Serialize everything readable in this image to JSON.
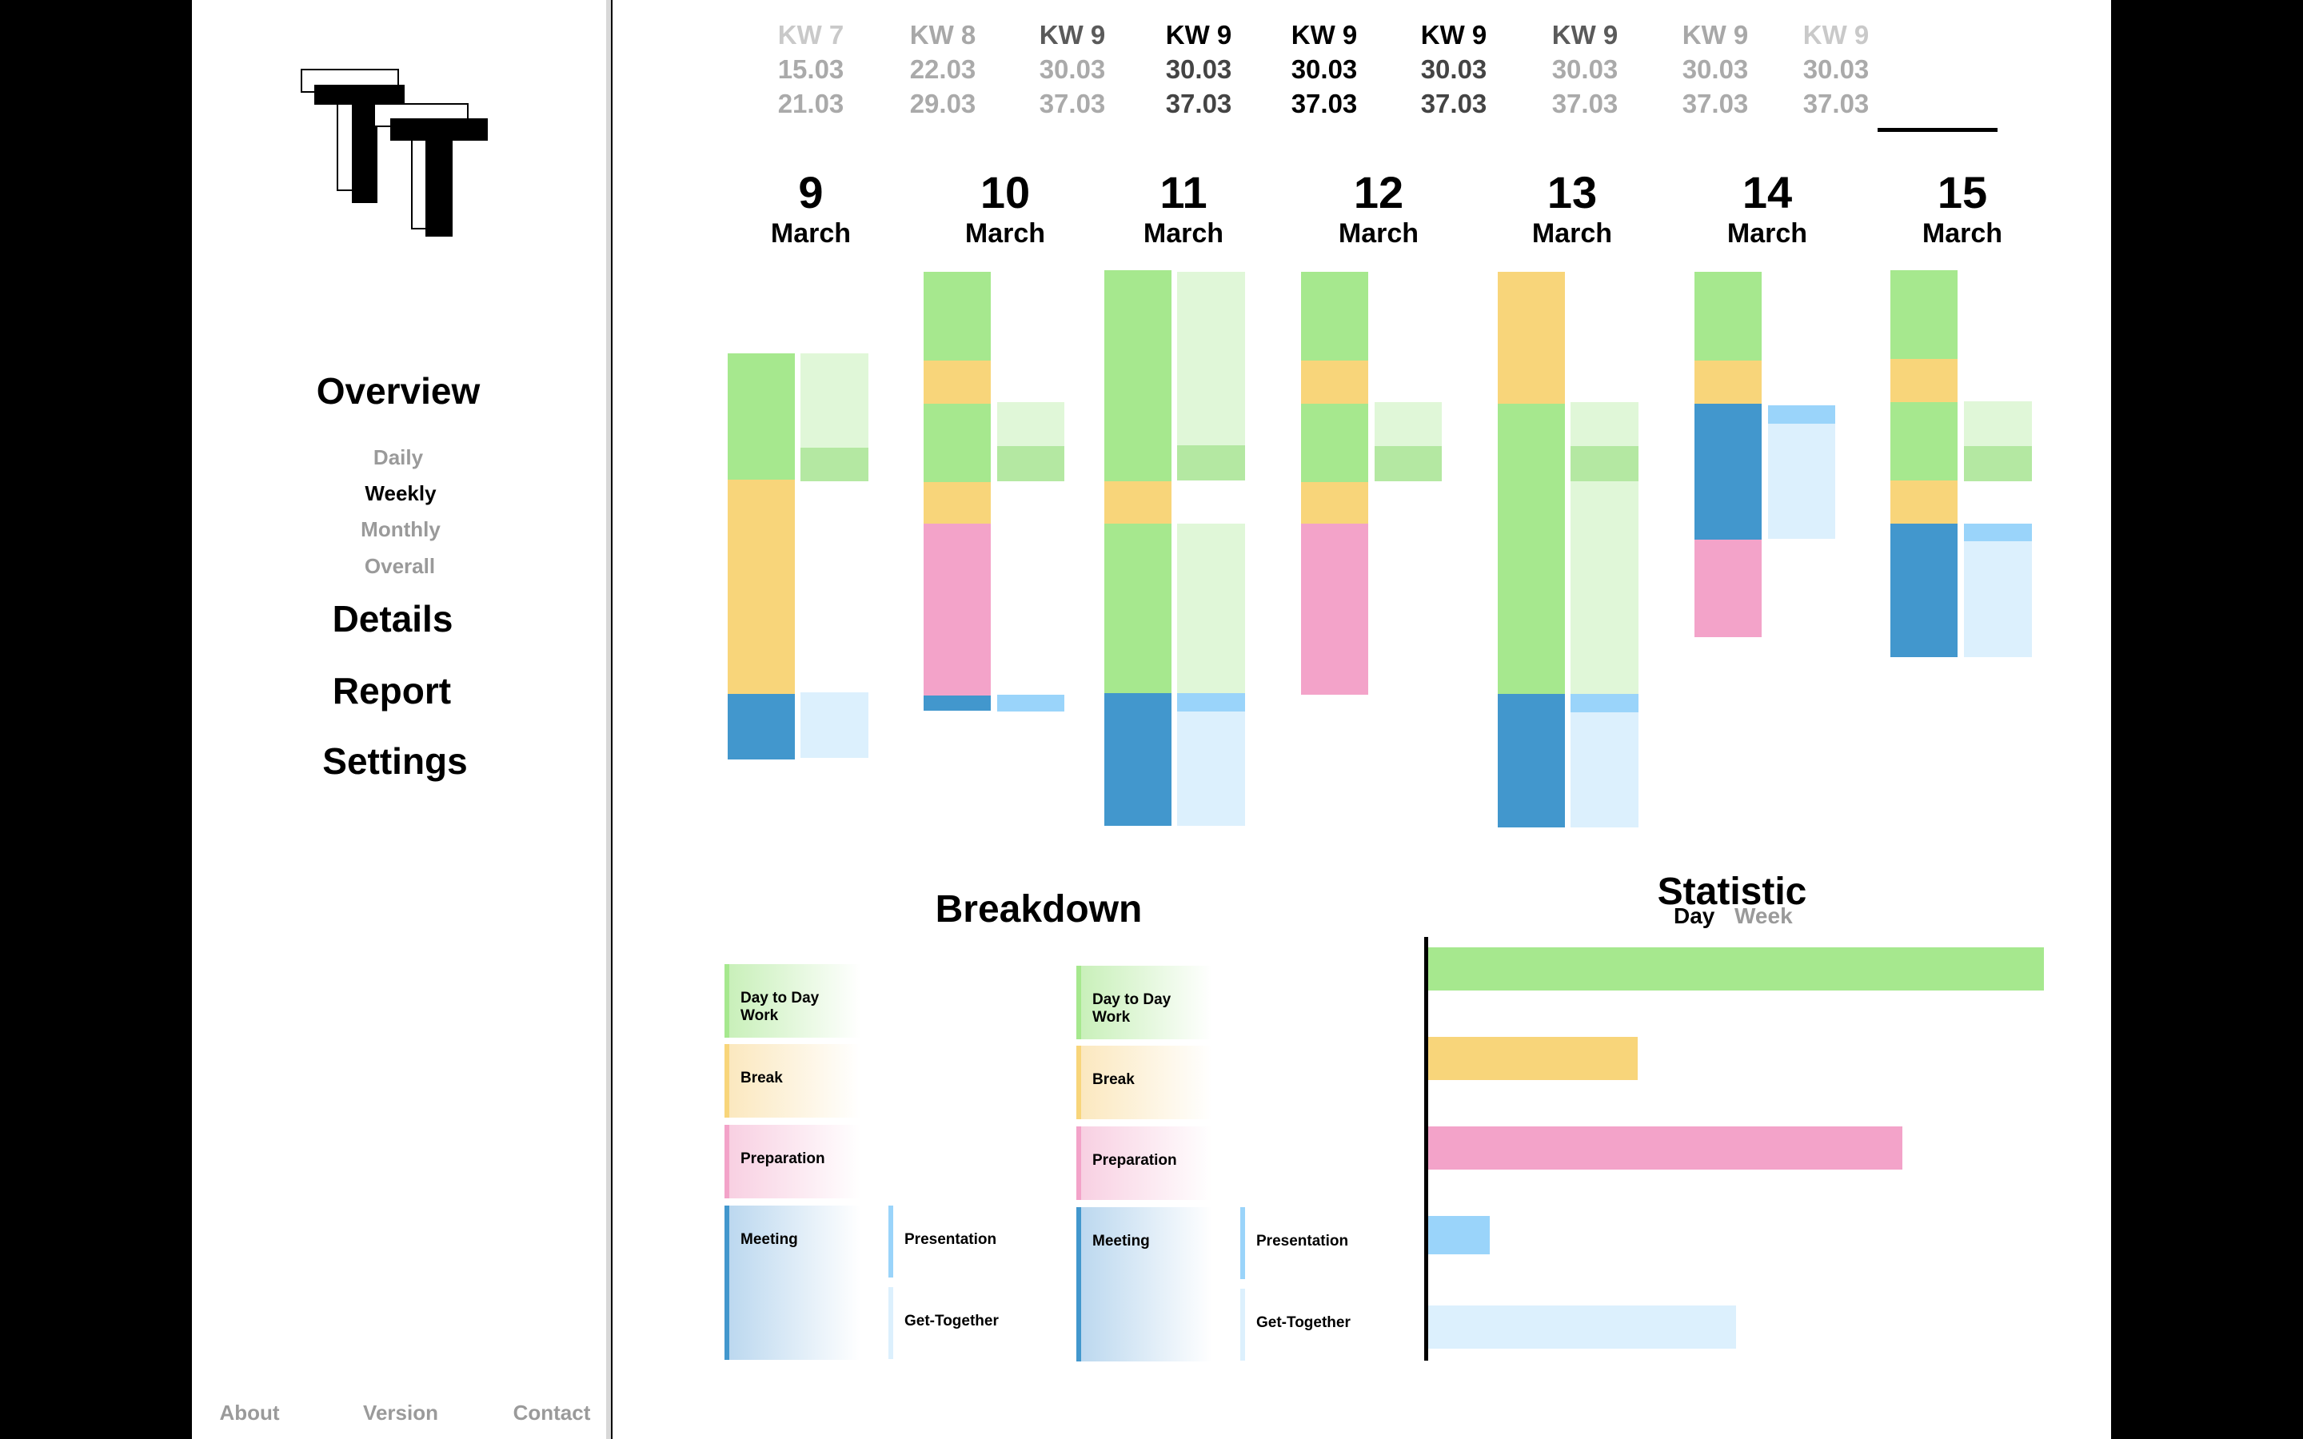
{
  "app": {
    "logo_name": "TT"
  },
  "colors": {
    "day_to_day_work": "#a6e88e",
    "break": "#f8d57a",
    "preparation": "#f3a3c9",
    "meeting": "#4297cd",
    "presentation": "#9ad4fa",
    "get_together": "#dcf0fd",
    "day_to_day_work_light": "#e0f7d8",
    "day_to_day_work_mid": "#b4e8a2"
  },
  "nav": {
    "overview": "Overview",
    "overview_sub": [
      "Daily",
      "Weekly",
      "Monthly",
      "Overall"
    ],
    "details": "Details",
    "report": "Report",
    "settings": "Settings",
    "footer": [
      "About",
      "Version",
      "Contact"
    ]
  },
  "weeks": [
    {
      "kw": "KW 7",
      "from": "15.03",
      "to": "21.03",
      "active": false
    },
    {
      "kw": "KW 8",
      "from": "22.03",
      "to": "29.03",
      "active": false
    },
    {
      "kw": "KW 9",
      "from": "30.03",
      "to": "37.03",
      "active": false
    },
    {
      "kw": "KW 9",
      "from": "30.03",
      "to": "37.03",
      "active": false
    },
    {
      "kw": "KW 9",
      "from": "30.03",
      "to": "37.03",
      "active": true
    },
    {
      "kw": "KW 9",
      "from": "30.03",
      "to": "37.03",
      "active": false
    },
    {
      "kw": "KW 9",
      "from": "30.03",
      "to": "37.03",
      "active": false
    },
    {
      "kw": "KW 9",
      "from": "30.03",
      "to": "37.03",
      "active": false
    },
    {
      "kw": "KW 9",
      "from": "30.03",
      "to": "37.03",
      "active": false
    }
  ],
  "days": [
    {
      "num": "9",
      "month": "March"
    },
    {
      "num": "10",
      "month": "March"
    },
    {
      "num": "11",
      "month": "March"
    },
    {
      "num": "12",
      "month": "March"
    },
    {
      "num": "13",
      "month": "March"
    },
    {
      "num": "14",
      "month": "March"
    },
    {
      "num": "15",
      "month": "March"
    }
  ],
  "breakdown": {
    "title": "Breakdown",
    "columns": [
      [
        "Day to Day Work",
        "Break",
        "Preparation",
        "Meeting",
        "Presentation",
        "Get-Together"
      ],
      [
        "Day to Day Work",
        "Break",
        "Preparation",
        "Meeting",
        "Presentation",
        "Get-Together"
      ]
    ]
  },
  "statistic": {
    "title": "Statistic",
    "toggle_day": "Day",
    "toggle_week": "Week",
    "active": "Day"
  },
  "chart_data": {
    "type": "bar",
    "orientation": "horizontal",
    "categories": [
      "Day to Day Work",
      "Break",
      "Preparation",
      "Presentation",
      "Get-Together"
    ],
    "values": [
      100,
      34,
      77,
      10,
      50
    ],
    "colors": [
      "#a6e88e",
      "#f8d57a",
      "#f3a3c9",
      "#9ad4fa",
      "#dcf0fd"
    ],
    "xlim": [
      0,
      100
    ]
  }
}
